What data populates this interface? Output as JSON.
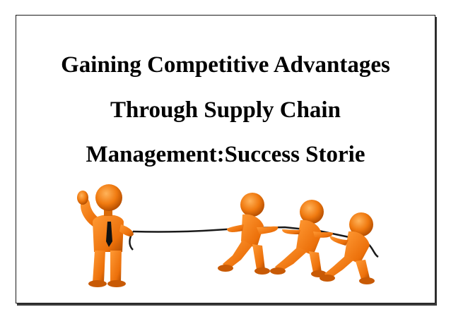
{
  "slide": {
    "title_lines": [
      "Gaining Competitive Advantages",
      "Through Supply Chain",
      "Management:Success Storie"
    ]
  },
  "illustration": {
    "description_icon": "tug-of-war-icon",
    "figure_color": "#f07a10",
    "shade_color": "#c85a05",
    "rope_color": "#1a1a1a"
  }
}
